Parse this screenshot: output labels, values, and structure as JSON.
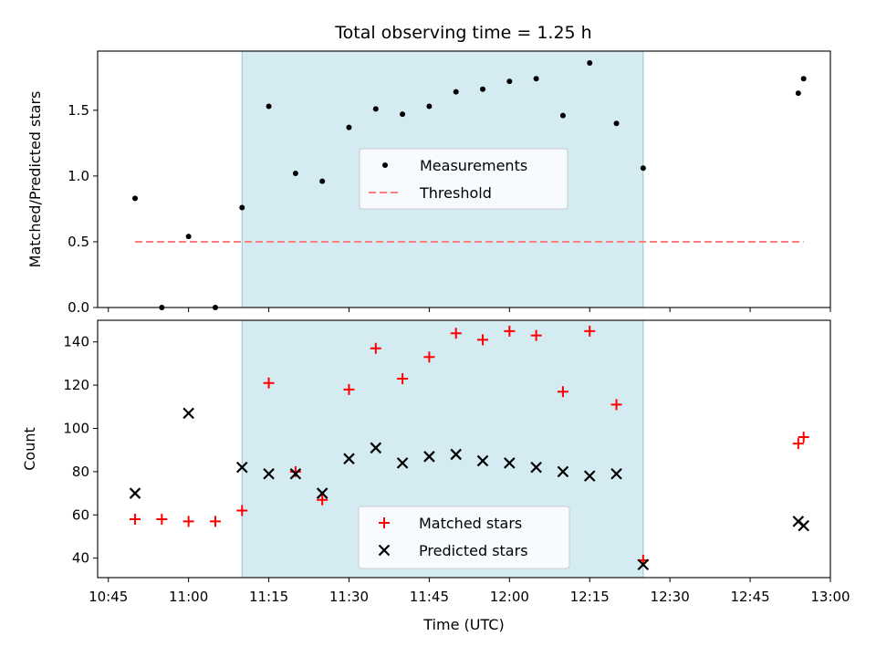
{
  "figure": {
    "title": "Total observing time = 1.25 h"
  },
  "chart_data": [
    {
      "type": "scatter",
      "ylabel": "Matched/Predicted stars",
      "xlabel": "",
      "xlim": [
        "10:43",
        "13:00"
      ],
      "ylim": [
        0,
        1.95
      ],
      "yticks": [
        0.0,
        0.5,
        1.0,
        1.5
      ],
      "ytick_labels": [
        "0.0",
        "0.5",
        "1.0",
        "1.5"
      ],
      "shaded_span": [
        "11:10",
        "12:25"
      ],
      "grid": false,
      "legend_position": "center",
      "series": [
        {
          "name": "Measurements",
          "color": "#000000",
          "marker": "dot",
          "points": [
            [
              "10:50",
              0.83
            ],
            [
              "10:55",
              0.0
            ],
            [
              "11:00",
              0.54
            ],
            [
              "11:05",
              0.0
            ],
            [
              "11:10",
              0.76
            ],
            [
              "11:15",
              1.53
            ],
            [
              "11:20",
              1.02
            ],
            [
              "11:25",
              0.96
            ],
            [
              "11:30",
              1.37
            ],
            [
              "11:35",
              1.51
            ],
            [
              "11:40",
              1.47
            ],
            [
              "11:45",
              1.53
            ],
            [
              "11:50",
              1.64
            ],
            [
              "11:55",
              1.66
            ],
            [
              "12:00",
              1.72
            ],
            [
              "12:05",
              1.74
            ],
            [
              "12:10",
              1.46
            ],
            [
              "12:15",
              1.86
            ],
            [
              "12:20",
              1.4
            ],
            [
              "12:25",
              1.06
            ],
            [
              "12:54",
              1.63
            ],
            [
              "12:55",
              1.74
            ]
          ]
        },
        {
          "name": "Threshold",
          "color": "#ff7f7f",
          "style": "dashed",
          "points": [
            [
              "10:50",
              0.5
            ],
            [
              "12:55",
              0.5
            ]
          ]
        }
      ]
    },
    {
      "type": "scatter",
      "ylabel": "Count",
      "xlabel": "Time (UTC)",
      "xlim": [
        "10:43",
        "13:00"
      ],
      "ylim": [
        31,
        150
      ],
      "yticks": [
        40,
        60,
        80,
        100,
        120,
        140
      ],
      "ytick_labels": [
        "40",
        "60",
        "80",
        "100",
        "120",
        "140"
      ],
      "xticks": [
        "10:45",
        "11:00",
        "11:15",
        "11:30",
        "11:45",
        "12:00",
        "12:15",
        "12:30",
        "12:45",
        "13:00"
      ],
      "shaded_span": [
        "11:10",
        "12:25"
      ],
      "grid": false,
      "legend_position": "lower center",
      "series": [
        {
          "name": "Matched stars",
          "color": "#ff0000",
          "marker": "plus",
          "points": [
            [
              "10:50",
              58
            ],
            [
              "10:55",
              58
            ],
            [
              "11:00",
              57
            ],
            [
              "11:05",
              57
            ],
            [
              "11:10",
              62
            ],
            [
              "11:15",
              121
            ],
            [
              "11:20",
              80
            ],
            [
              "11:25",
              67
            ],
            [
              "11:30",
              118
            ],
            [
              "11:35",
              137
            ],
            [
              "11:40",
              123
            ],
            [
              "11:45",
              133
            ],
            [
              "11:50",
              144
            ],
            [
              "11:55",
              141
            ],
            [
              "12:00",
              145
            ],
            [
              "12:05",
              143
            ],
            [
              "12:10",
              117
            ],
            [
              "12:15",
              145
            ],
            [
              "12:20",
              111
            ],
            [
              "12:25",
              39
            ],
            [
              "12:54",
              93
            ],
            [
              "12:55",
              96
            ]
          ]
        },
        {
          "name": "Predicted stars",
          "color": "#000000",
          "marker": "x",
          "points": [
            [
              "10:50",
              70
            ],
            [
              "11:00",
              107
            ],
            [
              "11:10",
              82
            ],
            [
              "11:15",
              79
            ],
            [
              "11:20",
              79
            ],
            [
              "11:25",
              70
            ],
            [
              "11:30",
              86
            ],
            [
              "11:35",
              91
            ],
            [
              "11:40",
              84
            ],
            [
              "11:45",
              87
            ],
            [
              "11:50",
              88
            ],
            [
              "11:55",
              85
            ],
            [
              "12:00",
              84
            ],
            [
              "12:05",
              82
            ],
            [
              "12:10",
              80
            ],
            [
              "12:15",
              78
            ],
            [
              "12:20",
              79
            ],
            [
              "12:25",
              37
            ],
            [
              "12:54",
              57
            ],
            [
              "12:55",
              55
            ]
          ]
        }
      ]
    }
  ],
  "colors": {
    "span_fill": "#add8e6",
    "span_edge": "#93c4d2",
    "threshold": "#ff7f7f"
  }
}
